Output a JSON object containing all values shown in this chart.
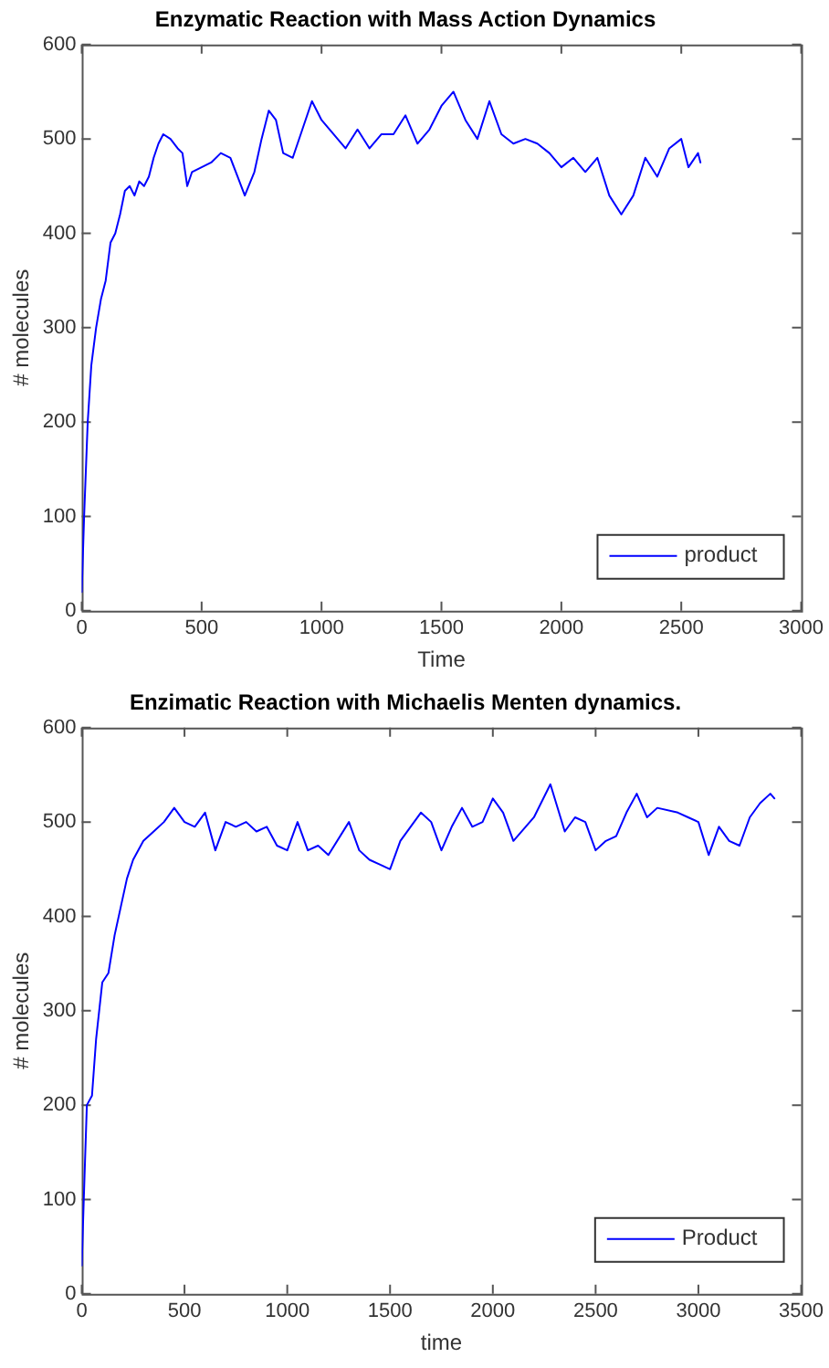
{
  "chart_data": [
    {
      "type": "line",
      "title": "Enzymatic Reaction with Mass Action Dynamics",
      "xlabel": "Time",
      "ylabel": "# molecules",
      "xlim": [
        0,
        3000
      ],
      "xticks": [
        0,
        500,
        1000,
        1500,
        2000,
        2500,
        3000
      ],
      "ylim": [
        0,
        600
      ],
      "yticks": [
        0,
        100,
        200,
        300,
        400,
        500,
        600
      ],
      "legend": "bottom right",
      "grid": false,
      "marker": "none",
      "line_style": "solid",
      "series": [
        {
          "name": "product",
          "color": "#0000ff",
          "x": [
            0,
            10,
            25,
            40,
            60,
            80,
            100,
            120,
            140,
            160,
            180,
            200,
            220,
            240,
            260,
            280,
            300,
            320,
            340,
            370,
            400,
            420,
            440,
            460,
            500,
            540,
            580,
            620,
            650,
            680,
            720,
            750,
            780,
            810,
            840,
            880,
            920,
            960,
            1000,
            1050,
            1100,
            1150,
            1200,
            1250,
            1300,
            1350,
            1400,
            1450,
            1500,
            1550,
            1600,
            1650,
            1700,
            1750,
            1800,
            1850,
            1900,
            1950,
            2000,
            2050,
            2100,
            2150,
            2200,
            2250,
            2300,
            2350,
            2400,
            2450,
            2500,
            2530,
            2570,
            2580
          ],
          "values": [
            20,
            100,
            200,
            260,
            300,
            330,
            350,
            390,
            400,
            420,
            445,
            450,
            440,
            455,
            450,
            460,
            480,
            495,
            505,
            500,
            490,
            485,
            450,
            465,
            470,
            475,
            485,
            480,
            460,
            440,
            465,
            500,
            530,
            520,
            485,
            480,
            510,
            540,
            520,
            505,
            490,
            510,
            490,
            505,
            505,
            525,
            495,
            510,
            535,
            550,
            520,
            500,
            540,
            505,
            495,
            500,
            495,
            485,
            470,
            480,
            465,
            480,
            440,
            420,
            440,
            480,
            460,
            490,
            500,
            470,
            485,
            475
          ]
        }
      ]
    },
    {
      "type": "line",
      "title": "Enzimatic Reaction with Michaelis Menten dynamics.",
      "xlabel": "time",
      "ylabel": "# molecules",
      "xlim": [
        0,
        3500
      ],
      "xticks": [
        0,
        500,
        1000,
        1500,
        2000,
        2500,
        3000,
        3500
      ],
      "ylim": [
        0,
        600
      ],
      "yticks": [
        0,
        100,
        200,
        300,
        400,
        500,
        600
      ],
      "legend": "bottom right",
      "grid": false,
      "marker": "none",
      "line_style": "solid",
      "series": [
        {
          "name": "Product",
          "color": "#0000ff",
          "x": [
            0,
            10,
            25,
            50,
            70,
            100,
            130,
            160,
            190,
            220,
            250,
            300,
            350,
            400,
            450,
            500,
            550,
            600,
            650,
            700,
            750,
            800,
            850,
            900,
            950,
            1000,
            1050,
            1100,
            1150,
            1200,
            1300,
            1350,
            1400,
            1450,
            1500,
            1550,
            1600,
            1650,
            1700,
            1750,
            1800,
            1850,
            1900,
            1950,
            2000,
            2050,
            2100,
            2200,
            2280,
            2350,
            2400,
            2450,
            2500,
            2550,
            2600,
            2650,
            2700,
            2750,
            2800,
            2900,
            2950,
            3000,
            3050,
            3100,
            3150,
            3200,
            3250,
            3300,
            3350,
            3370
          ],
          "values": [
            30,
            100,
            200,
            210,
            270,
            330,
            340,
            380,
            410,
            440,
            460,
            480,
            490,
            500,
            515,
            500,
            495,
            510,
            470,
            500,
            495,
            500,
            490,
            495,
            475,
            470,
            500,
            470,
            475,
            465,
            500,
            470,
            460,
            455,
            450,
            480,
            495,
            510,
            500,
            470,
            495,
            515,
            495,
            500,
            525,
            510,
            480,
            505,
            540,
            490,
            505,
            500,
            470,
            480,
            485,
            510,
            530,
            505,
            515,
            510,
            505,
            500,
            465,
            495,
            480,
            475,
            505,
            520,
            530,
            525
          ]
        }
      ]
    }
  ]
}
